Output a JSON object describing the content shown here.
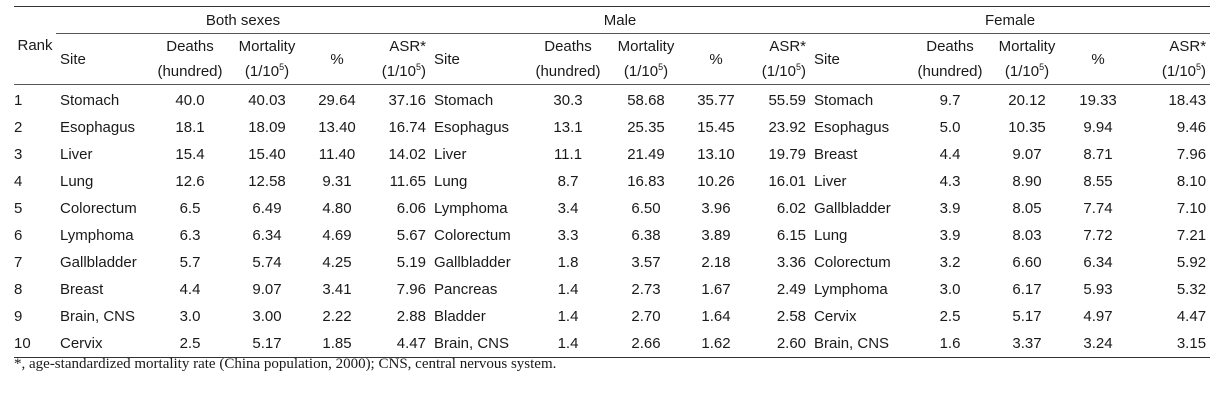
{
  "groups": [
    "Both sexes",
    "Male",
    "Female"
  ],
  "headers": {
    "rank": "Rank",
    "site": "Site",
    "deaths_1": "Deaths",
    "deaths_2": "(hundred)",
    "mortality_1": "Mortality",
    "mortality_2": "(1/10",
    "mortality_exp": "5",
    "mortality_close": ")",
    "percent": "%",
    "asr_1": "ASR*",
    "asr_2": "(1/10",
    "asr_exp": "5",
    "asr_close": ")"
  },
  "rows": [
    {
      "rank": "1",
      "both": {
        "site": "Stomach",
        "deaths": "40.0",
        "mortality": "40.03",
        "pct": "29.64",
        "asr": "37.16"
      },
      "male": {
        "site": "Stomach",
        "deaths": "30.3",
        "mortality": "58.68",
        "pct": "35.77",
        "asr": "55.59"
      },
      "female": {
        "site": "Stomach",
        "deaths": "9.7",
        "mortality": "20.12",
        "pct": "19.33",
        "asr": "18.43"
      }
    },
    {
      "rank": "2",
      "both": {
        "site": "Esophagus",
        "deaths": "18.1",
        "mortality": "18.09",
        "pct": "13.40",
        "asr": "16.74"
      },
      "male": {
        "site": "Esophagus",
        "deaths": "13.1",
        "mortality": "25.35",
        "pct": "15.45",
        "asr": "23.92"
      },
      "female": {
        "site": "Esophagus",
        "deaths": "5.0",
        "mortality": "10.35",
        "pct": "9.94",
        "asr": "9.46"
      }
    },
    {
      "rank": "3",
      "both": {
        "site": "Liver",
        "deaths": "15.4",
        "mortality": "15.40",
        "pct": "11.40",
        "asr": "14.02"
      },
      "male": {
        "site": "Liver",
        "deaths": "11.1",
        "mortality": "21.49",
        "pct": "13.10",
        "asr": "19.79"
      },
      "female": {
        "site": "Breast",
        "deaths": "4.4",
        "mortality": "9.07",
        "pct": "8.71",
        "asr": "7.96"
      }
    },
    {
      "rank": "4",
      "both": {
        "site": "Lung",
        "deaths": "12.6",
        "mortality": "12.58",
        "pct": "9.31",
        "asr": "11.65"
      },
      "male": {
        "site": "Lung",
        "deaths": "8.7",
        "mortality": "16.83",
        "pct": "10.26",
        "asr": "16.01"
      },
      "female": {
        "site": "Liver",
        "deaths": "4.3",
        "mortality": "8.90",
        "pct": "8.55",
        "asr": "8.10"
      }
    },
    {
      "rank": "5",
      "both": {
        "site": "Colorectum",
        "deaths": "6.5",
        "mortality": "6.49",
        "pct": "4.80",
        "asr": "6.06"
      },
      "male": {
        "site": "Lymphoma",
        "deaths": "3.4",
        "mortality": "6.50",
        "pct": "3.96",
        "asr": "6.02"
      },
      "female": {
        "site": "Gallbladder",
        "deaths": "3.9",
        "mortality": "8.05",
        "pct": "7.74",
        "asr": "7.10"
      }
    },
    {
      "rank": "6",
      "both": {
        "site": "Lymphoma",
        "deaths": "6.3",
        "mortality": "6.34",
        "pct": "4.69",
        "asr": "5.67"
      },
      "male": {
        "site": "Colorectum",
        "deaths": "3.3",
        "mortality": "6.38",
        "pct": "3.89",
        "asr": "6.15"
      },
      "female": {
        "site": "Lung",
        "deaths": "3.9",
        "mortality": "8.03",
        "pct": "7.72",
        "asr": "7.21"
      }
    },
    {
      "rank": "7",
      "both": {
        "site": "Gallbladder",
        "deaths": "5.7",
        "mortality": "5.74",
        "pct": "4.25",
        "asr": "5.19"
      },
      "male": {
        "site": "Gallbladder",
        "deaths": "1.8",
        "mortality": "3.57",
        "pct": "2.18",
        "asr": "3.36"
      },
      "female": {
        "site": "Colorectum",
        "deaths": "3.2",
        "mortality": "6.60",
        "pct": "6.34",
        "asr": "5.92"
      }
    },
    {
      "rank": "8",
      "both": {
        "site": "Breast",
        "deaths": "4.4",
        "mortality": "9.07",
        "pct": "3.41",
        "asr": "7.96"
      },
      "male": {
        "site": "Pancreas",
        "deaths": "1.4",
        "mortality": "2.73",
        "pct": "1.67",
        "asr": "2.49"
      },
      "female": {
        "site": "Lymphoma",
        "deaths": "3.0",
        "mortality": "6.17",
        "pct": "5.93",
        "asr": "5.32"
      }
    },
    {
      "rank": "9",
      "both": {
        "site": "Brain, CNS",
        "deaths": "3.0",
        "mortality": "3.00",
        "pct": "2.22",
        "asr": "2.88"
      },
      "male": {
        "site": "Bladder",
        "deaths": "1.4",
        "mortality": "2.70",
        "pct": "1.64",
        "asr": "2.58"
      },
      "female": {
        "site": "Cervix",
        "deaths": "2.5",
        "mortality": "5.17",
        "pct": "4.97",
        "asr": "4.47"
      }
    },
    {
      "rank": "10",
      "both": {
        "site": "Cervix",
        "deaths": "2.5",
        "mortality": "5.17",
        "pct": "1.85",
        "asr": "4.47"
      },
      "male": {
        "site": "Brain, CNS",
        "deaths": "1.4",
        "mortality": "2.66",
        "pct": "1.62",
        "asr": "2.60"
      },
      "female": {
        "site": "Brain, CNS",
        "deaths": "1.6",
        "mortality": "3.37",
        "pct": "3.24",
        "asr": "3.15"
      }
    }
  ],
  "footnote": "*, age-standardized mortality rate (China population, 2000); CNS, central nervous system."
}
